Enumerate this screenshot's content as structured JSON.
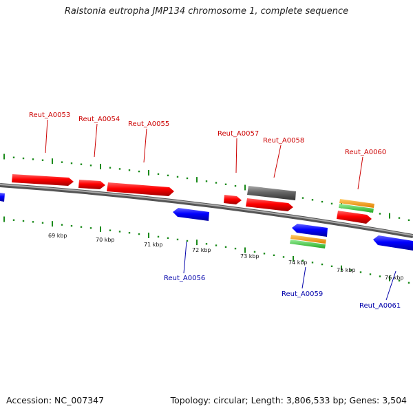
{
  "title": "Ralstonia eutropha JMP134 chromosome 1, complete sequence",
  "footer": {
    "accession": "Accession: NC_007347",
    "summary": "Topology: circular; Length: 3,806,533 bp; Genes: 3,504"
  },
  "colors": {
    "forward_gene": "#ff0000",
    "reverse_gene": "#0000ff",
    "forward_label": "#cc0000",
    "reverse_label": "#0000aa",
    "backbone": "#888888",
    "tick": "#1a8a1a",
    "rna_gray": "#666666",
    "orange": "#ff9900",
    "green": "#33cc33"
  },
  "kbp_labels": [
    "69 kbp",
    "70 kbp",
    "71 kbp",
    "72 kbp",
    "73 kbp",
    "74 kbp",
    "75 kbp",
    "76 kbp"
  ],
  "gene_labels": {
    "a0053": "Reut_A0053",
    "a0054": "Reut_A0054",
    "a0055": "Reut_A0055",
    "a0056": "Reut_A0056",
    "a0057": "Reut_A0057",
    "a0058": "Reut_A0058",
    "a0059": "Reut_A0059",
    "a0060": "Reut_A0060",
    "a0061": "Reut_A0061"
  }
}
